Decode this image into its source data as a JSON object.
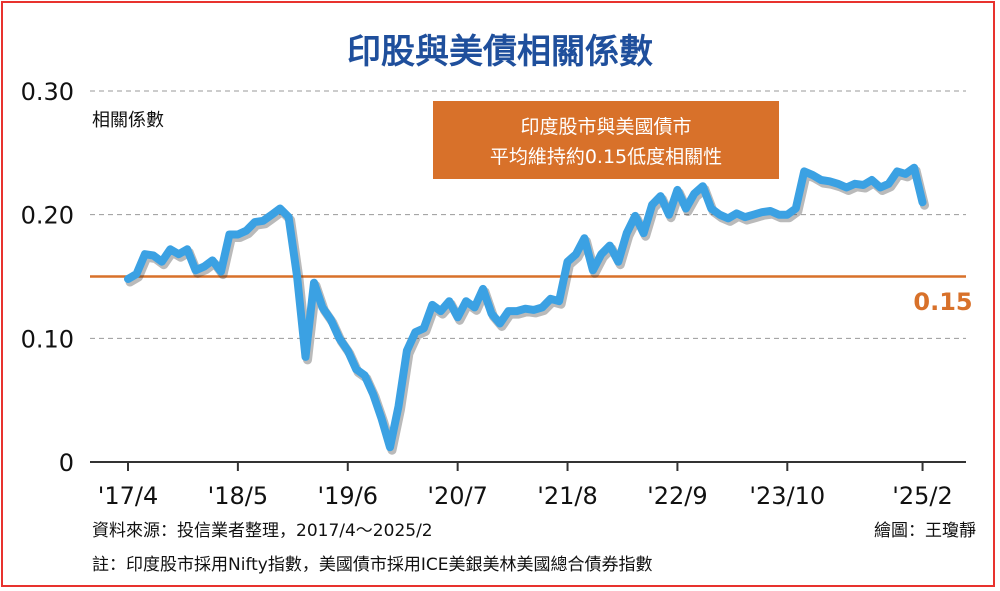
{
  "chart_data": {
    "type": "line",
    "title": "印股與美債相關係數",
    "ylabel": "相關係數",
    "ylim": [
      0,
      0.3
    ],
    "yticks": [
      {
        "value": 0,
        "label": "0"
      },
      {
        "value": 0.1,
        "label": "0.10"
      },
      {
        "value": 0.2,
        "label": "0.20"
      },
      {
        "value": 0.3,
        "label": "0.30"
      }
    ],
    "xlim": [
      0,
      95
    ],
    "xticks": [
      {
        "value": 0,
        "label": "'17/4"
      },
      {
        "value": 13,
        "label": "'18/5"
      },
      {
        "value": 26,
        "label": "'19/6"
      },
      {
        "value": 39,
        "label": "'20/7"
      },
      {
        "value": 52,
        "label": "'21/8"
      },
      {
        "value": 65,
        "label": "'22/9"
      },
      {
        "value": 78,
        "label": "'23/10"
      },
      {
        "value": 94,
        "label": "'25/2"
      }
    ],
    "grid": "dashed horizontal",
    "series": [
      {
        "color": "#3ba1e3",
        "x": [
          0,
          1,
          2,
          3,
          4,
          5,
          6,
          7,
          8,
          9,
          10,
          11,
          12,
          13,
          14,
          15,
          16,
          17,
          18,
          19,
          20,
          21,
          22,
          23,
          24,
          25,
          26,
          27,
          28,
          29,
          30,
          31,
          32,
          33,
          34,
          35,
          36,
          37,
          38,
          39,
          40,
          41,
          42,
          43,
          44,
          45,
          46,
          47,
          48,
          49,
          50,
          51,
          52,
          53,
          54,
          55,
          56,
          57,
          58,
          59,
          60,
          61,
          62,
          63,
          64,
          65,
          66,
          67,
          68,
          69,
          70,
          71,
          72,
          73,
          74,
          75,
          76,
          77,
          78,
          79,
          80,
          81,
          82,
          83,
          84,
          85,
          86,
          87,
          88,
          89,
          90,
          91,
          92,
          93,
          94
        ],
        "values": [
          0.148,
          0.152,
          0.168,
          0.167,
          0.162,
          0.172,
          0.168,
          0.172,
          0.155,
          0.158,
          0.163,
          0.154,
          0.184,
          0.184,
          0.187,
          0.194,
          0.195,
          0.2,
          0.205,
          0.198,
          0.15,
          0.085,
          0.145,
          0.125,
          0.115,
          0.1,
          0.09,
          0.075,
          0.07,
          0.055,
          0.035,
          0.012,
          0.045,
          0.09,
          0.105,
          0.108,
          0.127,
          0.122,
          0.13,
          0.117,
          0.13,
          0.125,
          0.14,
          0.12,
          0.112,
          0.122,
          0.122,
          0.124,
          0.123,
          0.125,
          0.132,
          0.13,
          0.162,
          0.168,
          0.181,
          0.155,
          0.168,
          0.175,
          0.162,
          0.185,
          0.199,
          0.185,
          0.208,
          0.215,
          0.2,
          0.22,
          0.205,
          0.217,
          0.223,
          0.205,
          0.2,
          0.197,
          0.201,
          0.198,
          0.2,
          0.202,
          0.203,
          0.2,
          0.2,
          0.205,
          0.235,
          0.232,
          0.228,
          0.227,
          0.225,
          0.222,
          0.225,
          0.224,
          0.228,
          0.222,
          0.225,
          0.235,
          0.233,
          0.238,
          0.21
        ]
      }
    ],
    "reference_line": {
      "value": 0.15,
      "label": "0.15",
      "color": "#d8712a"
    },
    "annotation": {
      "lines": [
        "印度股市與美國債市",
        "平均維持約0.15低度相關性"
      ],
      "bg_color": "#d8712a"
    }
  },
  "footer": {
    "source": "資料來源：投信業者整理，2017/4～2025/2",
    "credit": "繪圖：王瓊靜",
    "note": "註：印度股市採用Nifty指數，美國債市採用ICE美銀美林美國總合債券指數"
  },
  "colors": {
    "frame": "#e8322e",
    "title": "#1f4f9c",
    "line": "#3ba1e3",
    "reference": "#d8712a"
  }
}
